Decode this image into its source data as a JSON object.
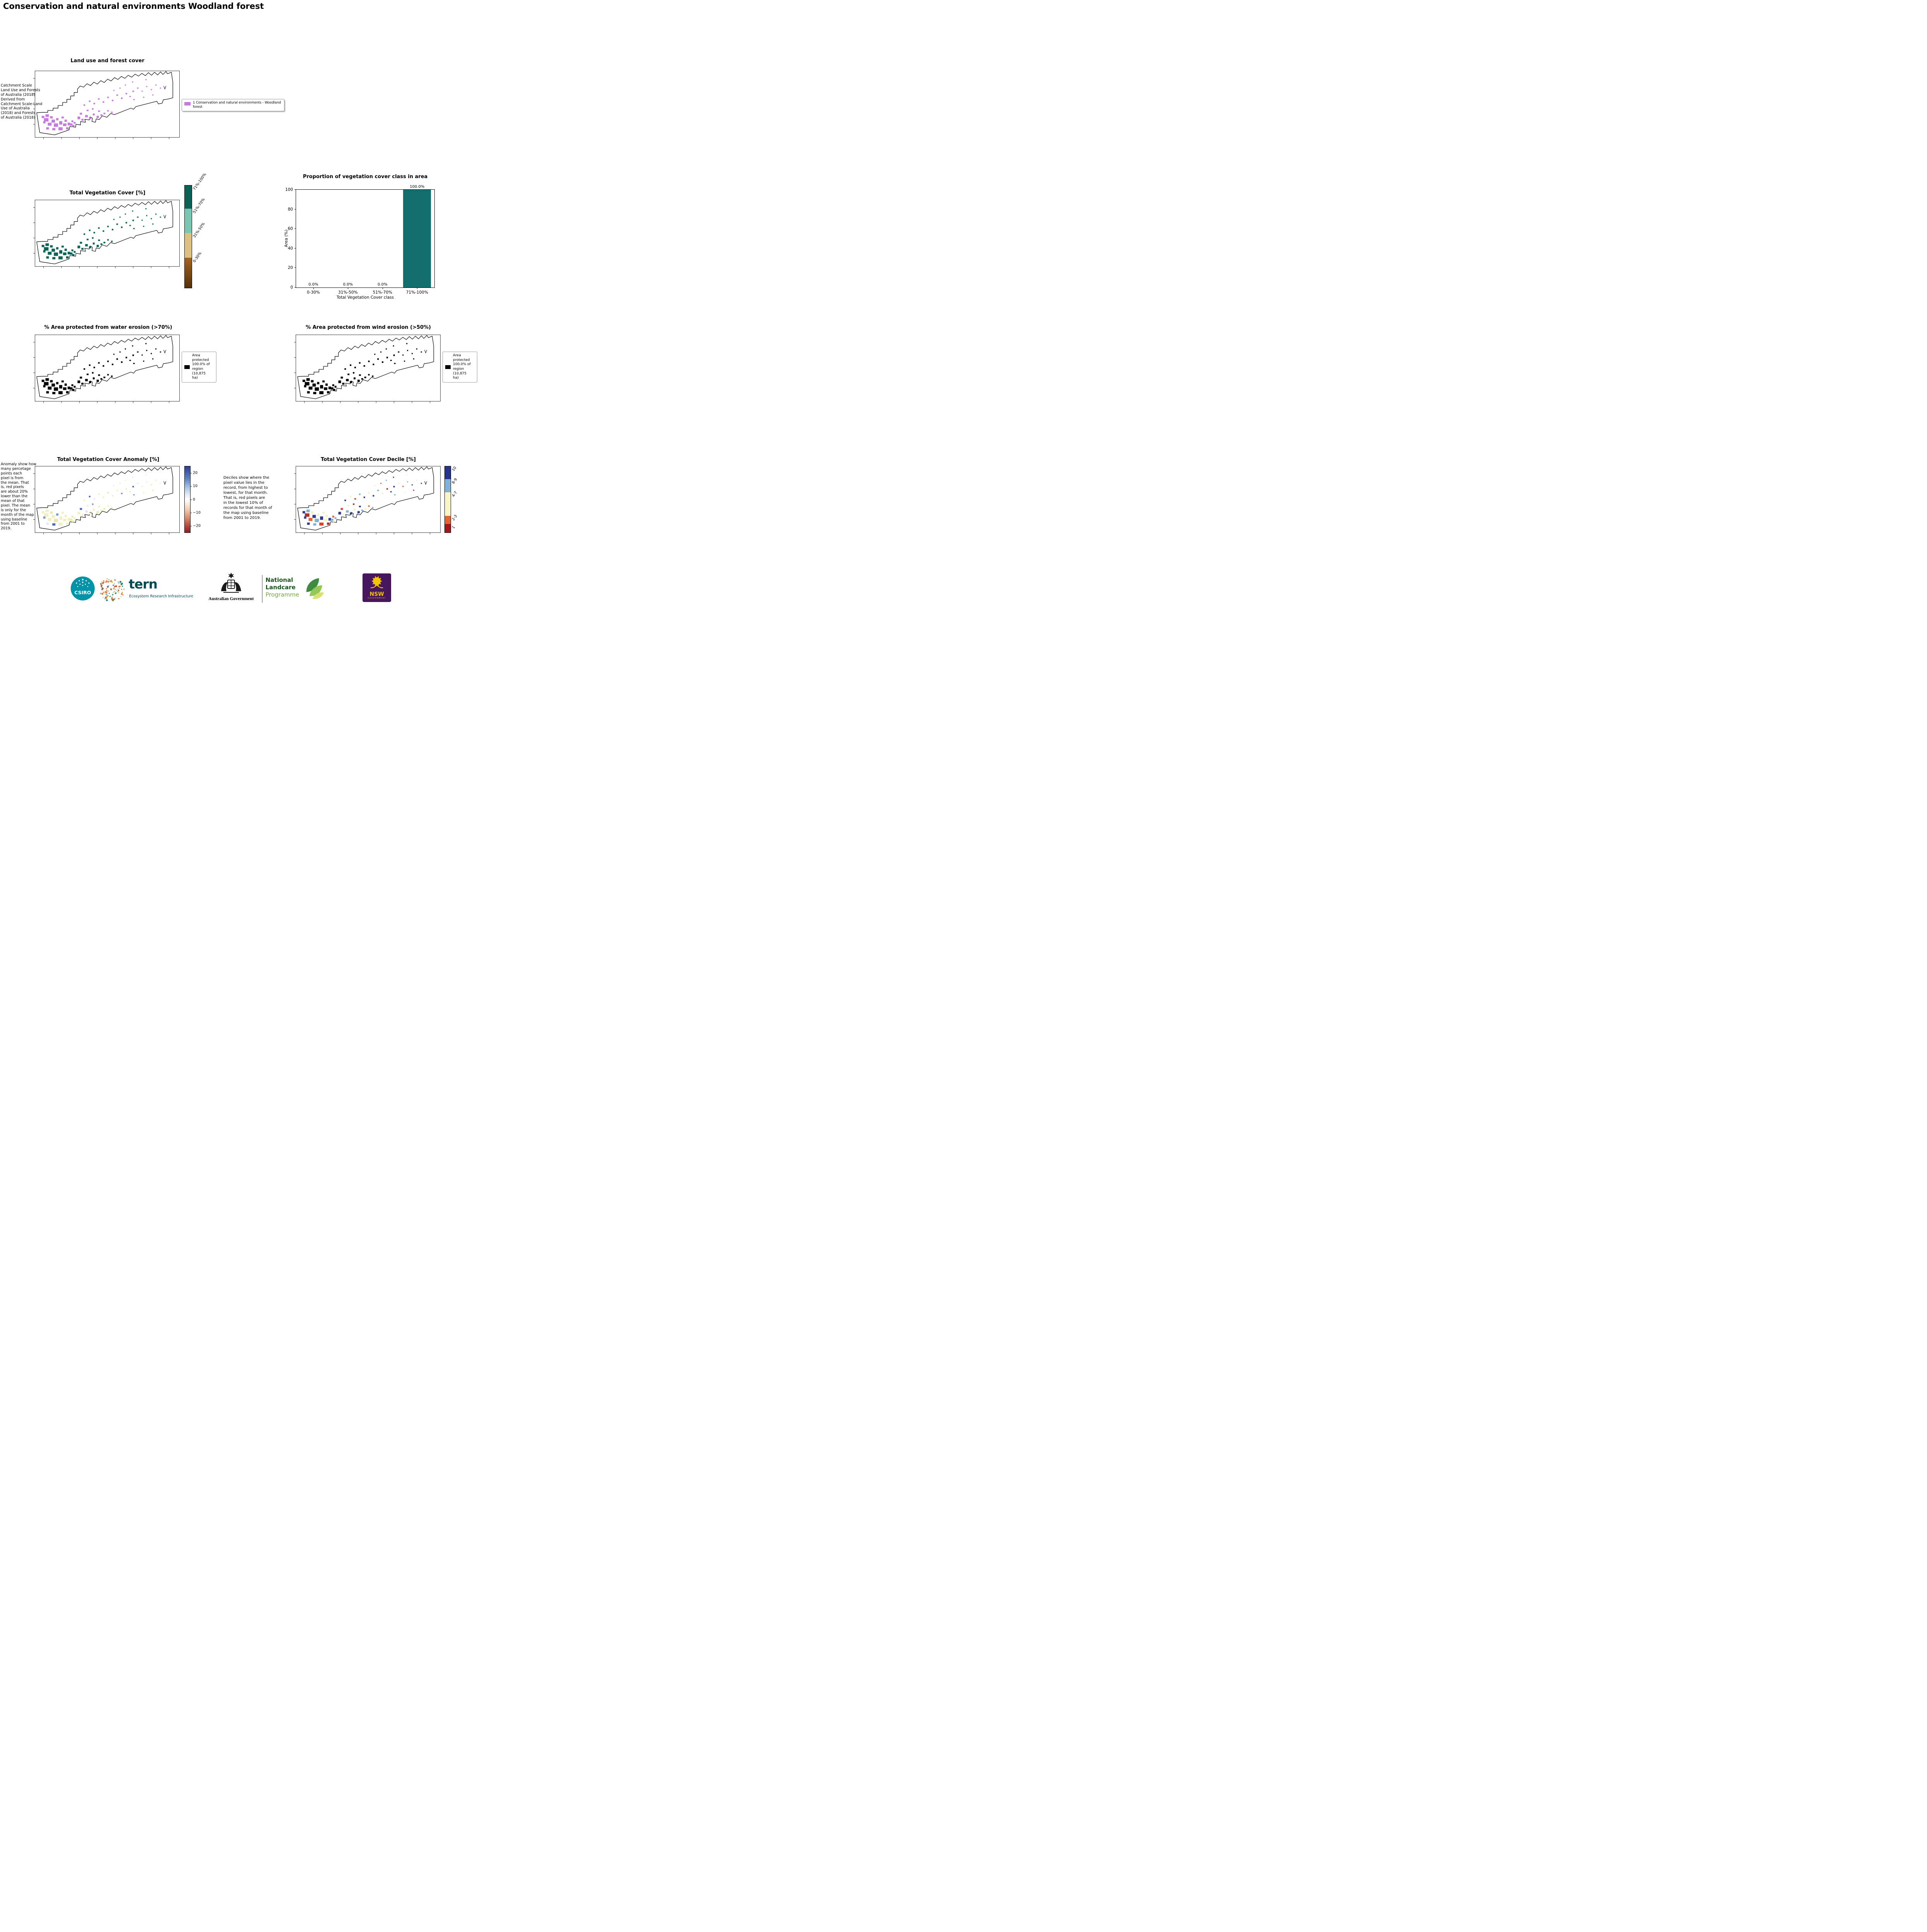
{
  "page": {
    "title": "Conservation and natural environments Woodland forest"
  },
  "panels": {
    "landuse": {
      "title": "Land use and forest cover",
      "note": " Catchment Scale\nLand Use and Forests\nof Australia (2018)\nDerived from\nCatchment Scale-Land\nUse of Australia\n(2018) and Forests\nof Australia (2018)",
      "legend_label": "1 Conservation and natural environments - Woodland\nforest"
    },
    "tvc": {
      "title": "Total Vegetation Cover [%]",
      "colorbar": [
        {
          "label": "71%-100%",
          "color": "#0a6156",
          "h": 60
        },
        {
          "label": "51%-70%",
          "color": "#79c7b2",
          "h": 64
        },
        {
          "label": "31%-50%",
          "color": "#ddc17e",
          "h": 64
        },
        {
          "label": "0-30%",
          "color": "#a4661f",
          "color2": "#53300a",
          "h": 79
        }
      ]
    },
    "water": {
      "title": "% Area protected from water erosion (>70%)",
      "legend_label": "Area\nprotected\n100.0% of\nregion\n(10,875\nha)"
    },
    "wind": {
      "title": "% Area protected from wind erosion (>50%)",
      "legend_label": "Area\nprotected\n100.0% of\nregion\n(10,875\nha)"
    },
    "anomaly": {
      "title": "Total Vegetation Cover Anomaly [%]",
      "note": "Anomaly show how\nmany percetage\npoints each\npixel is from\nthe mean. That\nis, red pixels\nare about 20%\nlower than the\nmean of that\npixel. The mean\nis only for the\nmonth of the map\nusing baseline\nfrom 2001 to\n2019.",
      "colorbar_ticks": [
        "20",
        "10",
        "0",
        "−10",
        "−20"
      ]
    },
    "decile": {
      "title": "Total Vegetation Cover Decile [%]",
      "note": "Deciles show where the\npixel value lies in the\nrecord, from highest to\nlowest, for that month.\nThat is, red pixels are\nin the lowest 10% of\nrecords for that month of\nthe map using baseline\nfrom 2001 to 2019.",
      "colorbar": [
        {
          "label": "10",
          "color": "#27348f",
          "h": 33
        },
        {
          "label": "8-9",
          "color": "#7fb2d8",
          "h": 34
        },
        {
          "label": "4-7",
          "color": "#f7f5c3",
          "h": 60
        },
        {
          "label": "2-3",
          "color": "#e2662f",
          "h": 21
        },
        {
          "label": "1",
          "color": "#a6161d",
          "h": 22
        }
      ]
    }
  },
  "chart_data": {
    "type": "bar",
    "title": "Proportion of vegetation cover class in area",
    "categories": [
      "0-30%",
      "31%-50%",
      "51%-70%",
      "71%-100%"
    ],
    "values": [
      0.0,
      0.0,
      0.0,
      100.0
    ],
    "value_labels": [
      "0.0%",
      "0.0%",
      "0.0%",
      "100.0%"
    ],
    "xlabel": "Total Vegetation Cover class",
    "ylabel": "Area (%)",
    "ylim": [
      0,
      100
    ],
    "yticks": [
      0,
      20,
      40,
      60,
      80,
      100
    ],
    "bar_color": "#156e6e",
    "grid": false,
    "legend_position": "none"
  },
  "map": {
    "patches": [
      [
        18,
        118,
        7,
        6
      ],
      [
        28,
        114,
        9,
        7
      ],
      [
        40,
        119,
        7,
        6
      ],
      [
        24,
        124,
        12,
        9
      ],
      [
        44,
        128,
        9,
        8
      ],
      [
        56,
        124,
        6,
        6
      ],
      [
        34,
        136,
        10,
        8
      ],
      [
        50,
        138,
        11,
        9
      ],
      [
        64,
        132,
        8,
        9
      ],
      [
        74,
        138,
        9,
        7
      ],
      [
        62,
        148,
        11,
        8
      ],
      [
        46,
        150,
        8,
        6
      ],
      [
        30,
        148,
        7,
        6
      ],
      [
        78,
        128,
        6,
        6
      ],
      [
        86,
        136,
        7,
        7
      ],
      [
        92,
        138,
        7,
        6
      ],
      [
        98,
        142,
        6,
        5
      ],
      [
        82,
        148,
        7,
        6
      ],
      [
        22,
        132,
        6,
        6
      ],
      [
        70,
        120,
        6,
        5
      ],
      [
        96,
        130,
        5,
        5
      ],
      [
        102,
        134,
        5,
        5
      ],
      [
        112,
        120,
        7,
        7
      ],
      [
        122,
        126,
        6,
        5
      ],
      [
        118,
        110,
        6,
        5
      ],
      [
        132,
        116,
        7,
        6
      ],
      [
        142,
        122,
        6,
        5
      ],
      [
        152,
        112,
        5,
        5
      ],
      [
        162,
        118,
        6,
        6
      ],
      [
        172,
        114,
        5,
        4
      ],
      [
        136,
        102,
        5,
        4
      ],
      [
        150,
        98,
        4,
        4
      ],
      [
        166,
        104,
        5,
        4
      ],
      [
        180,
        110,
        5,
        4
      ],
      [
        190,
        103,
        4,
        4
      ],
      [
        200,
        107,
        4,
        4
      ],
      [
        128,
        88,
        4,
        4
      ],
      [
        142,
        78,
        4,
        4
      ],
      [
        154,
        84,
        4,
        4
      ],
      [
        166,
        72,
        4,
        4
      ],
      [
        178,
        80,
        4,
        4
      ],
      [
        190,
        68,
        4,
        4
      ],
      [
        202,
        76,
        4,
        4
      ],
      [
        214,
        62,
        4,
        4
      ],
      [
        226,
        70,
        4,
        4
      ],
      [
        238,
        58,
        4,
        4
      ],
      [
        248,
        66,
        4,
        3
      ],
      [
        206,
        50,
        3,
        3
      ],
      [
        222,
        44,
        3,
        3
      ],
      [
        236,
        36,
        3,
        3
      ],
      [
        256,
        52,
        4,
        4
      ],
      [
        268,
        44,
        4,
        3
      ],
      [
        280,
        52,
        3,
        3
      ],
      [
        292,
        40,
        3,
        3
      ],
      [
        304,
        48,
        3,
        3
      ],
      [
        316,
        36,
        3,
        3
      ],
      [
        328,
        44,
        3,
        3
      ],
      [
        258,
        74,
        4,
        3
      ],
      [
        284,
        68,
        3,
        3
      ],
      [
        308,
        62,
        3,
        3
      ],
      [
        255,
        28,
        3,
        3
      ],
      [
        290,
        22,
        3,
        3
      ]
    ],
    "palettes": {
      "landuse": [
        "#c77be0"
      ],
      "tvc": [
        "#0b6458"
      ],
      "water": [
        "#000000"
      ],
      "wind": [
        "#000000"
      ],
      "anomaly": [
        "#f2efc0",
        "#f2efc0",
        "#ece8a8",
        "#f2efc0",
        "#f2efc0",
        "#7b9cd6",
        "#f2efc0",
        "#ece8a8",
        "#f2efc0",
        "#f2efc0",
        "#f2efc0",
        "#4a66b8",
        "#e6e9f4"
      ],
      "decile": [
        "#2c3b94",
        "#7fb2d8",
        "#f4f1c2",
        "#b03127",
        "#2c3b94",
        "#f4f1c2",
        "#e2662f",
        "#7fb2d8",
        "#2c3b94",
        "#f4f1c2",
        "#d8432f",
        "#7fb2d8",
        "#2c3b94",
        "#f4f1c2"
      ]
    }
  },
  "footer": {
    "csiro": "CSIRO",
    "tern": "tern",
    "tern_sub": "Ecosystem Research Infrastructure",
    "aus_gov": "Australian Government",
    "nlp_line1": "National",
    "nlp_line2": "Landcare",
    "nlp_line3": "Programme",
    "nsw": "NSW",
    "nsw_sub": "GOVERNMENT"
  }
}
